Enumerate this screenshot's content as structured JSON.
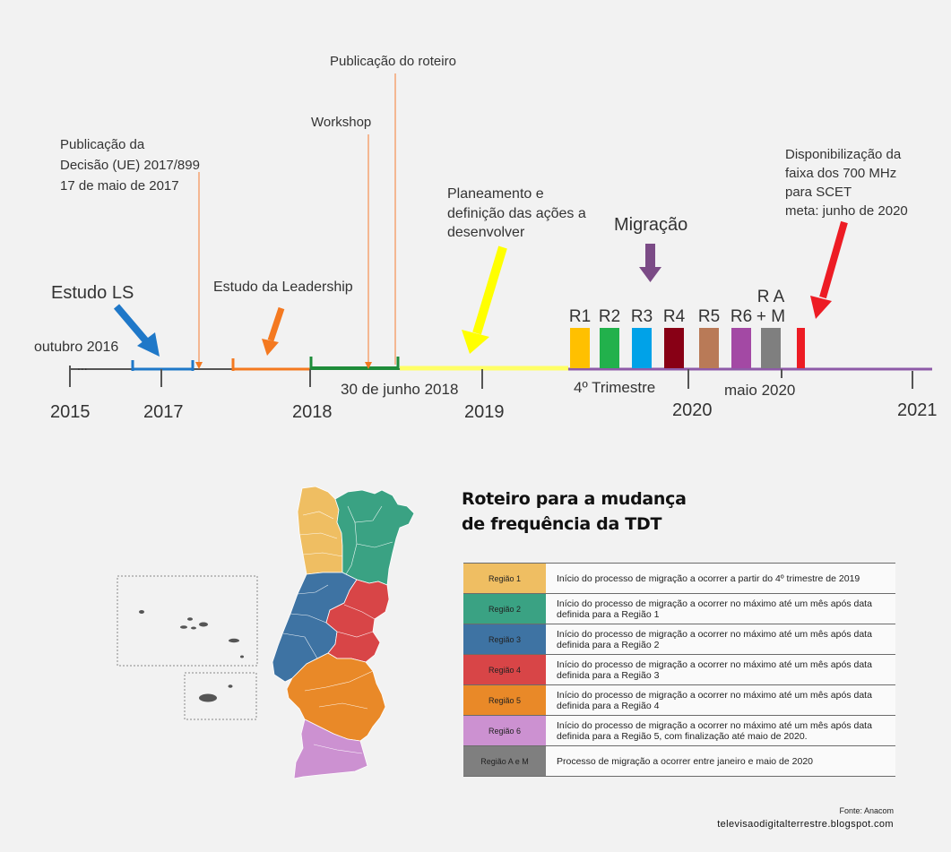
{
  "timeline": {
    "years": [
      "2015",
      "2017",
      "2018",
      "2019",
      "2020",
      "2021"
    ],
    "dots": "...",
    "labels": {
      "estudo_ls": "Estudo LS",
      "outubro": "outubro 2016",
      "publicacao_decisao": [
        "Publicação da",
        "Decisão (UE) 2017/899",
        "17 de maio de 2017"
      ],
      "estudo_leadership": "Estudo da Leadership",
      "workshop": "Workshop",
      "publicacao_roteiro": "Publicação do roteiro",
      "junho_2018": "30 de junho 2018",
      "planeamento": [
        "Planeamento e",
        "definição das ações a",
        "desenvolver"
      ],
      "migracao": "Migração",
      "trimestre": "4º Trimestre",
      "maio_2020": "maio 2020",
      "disponibilizacao": [
        "Disponibilização da",
        "faixa dos 700 MHz",
        "para SCET",
        "meta: junho de 2020"
      ]
    },
    "regions": [
      {
        "label": "R1",
        "color": "#ffc000"
      },
      {
        "label": "R2",
        "color": "#22b14c"
      },
      {
        "label": "R3",
        "color": "#00a2e8"
      },
      {
        "label": "R4",
        "color": "#880015"
      },
      {
        "label": "R5",
        "color": "#b97a57"
      },
      {
        "label": "R6",
        "color": "#a349a4"
      },
      {
        "label": [
          "R A",
          "+ M"
        ],
        "color": "#7f7f7f"
      },
      {
        "label": "",
        "color": "#ed1c24"
      }
    ]
  },
  "legend": {
    "title": [
      "Roteiro para a mudança",
      "de frequência da TDT"
    ],
    "rows": [
      {
        "region": "Região 1",
        "color": "#efbe62",
        "text": "Início do processo de migração a ocorrer a partir do 4º trimestre de 2019"
      },
      {
        "region": "Região 2",
        "color": "#3aa283",
        "text": "Início do processo de migração a ocorrer no máximo até um mês após data definida para a Região 1"
      },
      {
        "region": "Região 3",
        "color": "#3e73a3",
        "text": "Início do processo de migração a ocorrer no máximo até um mês após data definida para a Região 2"
      },
      {
        "region": "Região 4",
        "color": "#d84547",
        "text": "Início do processo de migração a ocorrer no máximo até um mês após data definida para a Região 3"
      },
      {
        "region": "Região 5",
        "color": "#e98928",
        "text": "Início do processo de migração a ocorrer no máximo até um mês após data definida para a Região 4"
      },
      {
        "region": "Região 6",
        "color": "#cc91d1",
        "text": "Início do processo de migração a ocorrer no máximo até um mês após data definida para a Região 5, com finalização até maio de 2020."
      },
      {
        "region": "Região A e M",
        "color": "#7f7f7f",
        "text": "Processo de migração a ocorrer entre janeiro e maio de 2020"
      }
    ]
  },
  "source": "Fonte: Anacom",
  "site": "televisaodigitalterrestre.blogspot.com"
}
